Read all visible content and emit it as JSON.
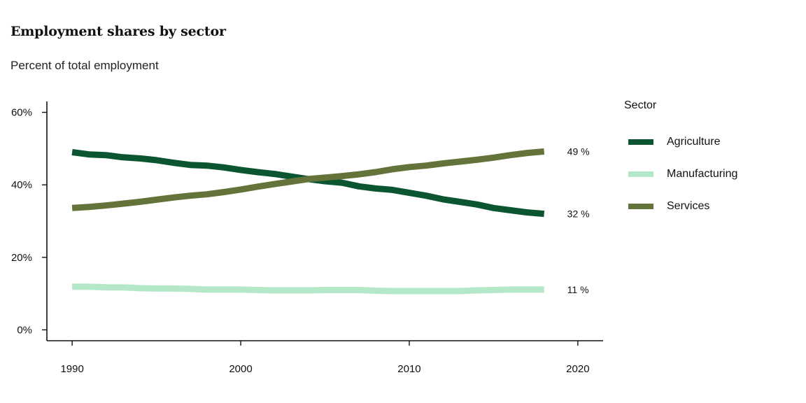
{
  "title": "Employment shares by sector",
  "subtitle": "Percent of total employment",
  "chart_data": {
    "type": "line",
    "title": "Employment shares by sector",
    "subtitle": "Percent of total employment",
    "xlabel": "",
    "ylabel": "",
    "xlim": [
      1988.5,
      2021.5
    ],
    "ylim": [
      -3,
      63
    ],
    "x_ticks": [
      1990,
      2000,
      2010,
      2020
    ],
    "x_tick_labels": [
      "1990",
      "2000",
      "2010",
      "2020"
    ],
    "y_ticks": [
      0,
      20,
      40,
      60
    ],
    "y_tick_labels": [
      "0%",
      "20%",
      "40%",
      "60%"
    ],
    "grid": false,
    "legend_title": "Sector",
    "legend_position": "right",
    "x": [
      1990,
      1991,
      1992,
      1993,
      1994,
      1995,
      1996,
      1997,
      1998,
      1999,
      2000,
      2001,
      2002,
      2003,
      2004,
      2005,
      2006,
      2007,
      2008,
      2009,
      2010,
      2011,
      2012,
      2013,
      2014,
      2015,
      2016,
      2017,
      2018
    ],
    "series": [
      {
        "name": "Agriculture",
        "color": "#0b5530",
        "values": [
          49.0,
          48.4,
          48.2,
          47.6,
          47.3,
          46.8,
          46.1,
          45.5,
          45.3,
          44.8,
          44.1,
          43.5,
          43.0,
          42.3,
          41.6,
          41.0,
          40.6,
          39.6,
          39.0,
          38.6,
          37.8,
          37.0,
          36.0,
          35.3,
          34.6,
          33.6,
          33.0,
          32.4,
          32.0
        ],
        "end_label": "32 %"
      },
      {
        "name": "Manufacturing",
        "color": "#b5e8c9",
        "values": [
          11.9,
          11.9,
          11.7,
          11.7,
          11.5,
          11.4,
          11.4,
          11.3,
          11.1,
          11.1,
          11.1,
          11.0,
          10.9,
          10.9,
          10.9,
          11.0,
          11.0,
          11.0,
          10.8,
          10.7,
          10.7,
          10.7,
          10.7,
          10.7,
          10.9,
          11.0,
          11.1,
          11.1,
          11.1
        ],
        "end_label": "11 %"
      },
      {
        "name": "Services",
        "color": "#647339",
        "values": [
          33.6,
          33.9,
          34.3,
          34.8,
          35.3,
          35.9,
          36.5,
          37.0,
          37.4,
          38.0,
          38.7,
          39.5,
          40.2,
          40.9,
          41.6,
          42.0,
          42.4,
          42.9,
          43.5,
          44.3,
          44.9,
          45.3,
          45.9,
          46.4,
          46.9,
          47.5,
          48.2,
          48.8,
          49.2
        ],
        "end_label": "49 %"
      }
    ]
  }
}
